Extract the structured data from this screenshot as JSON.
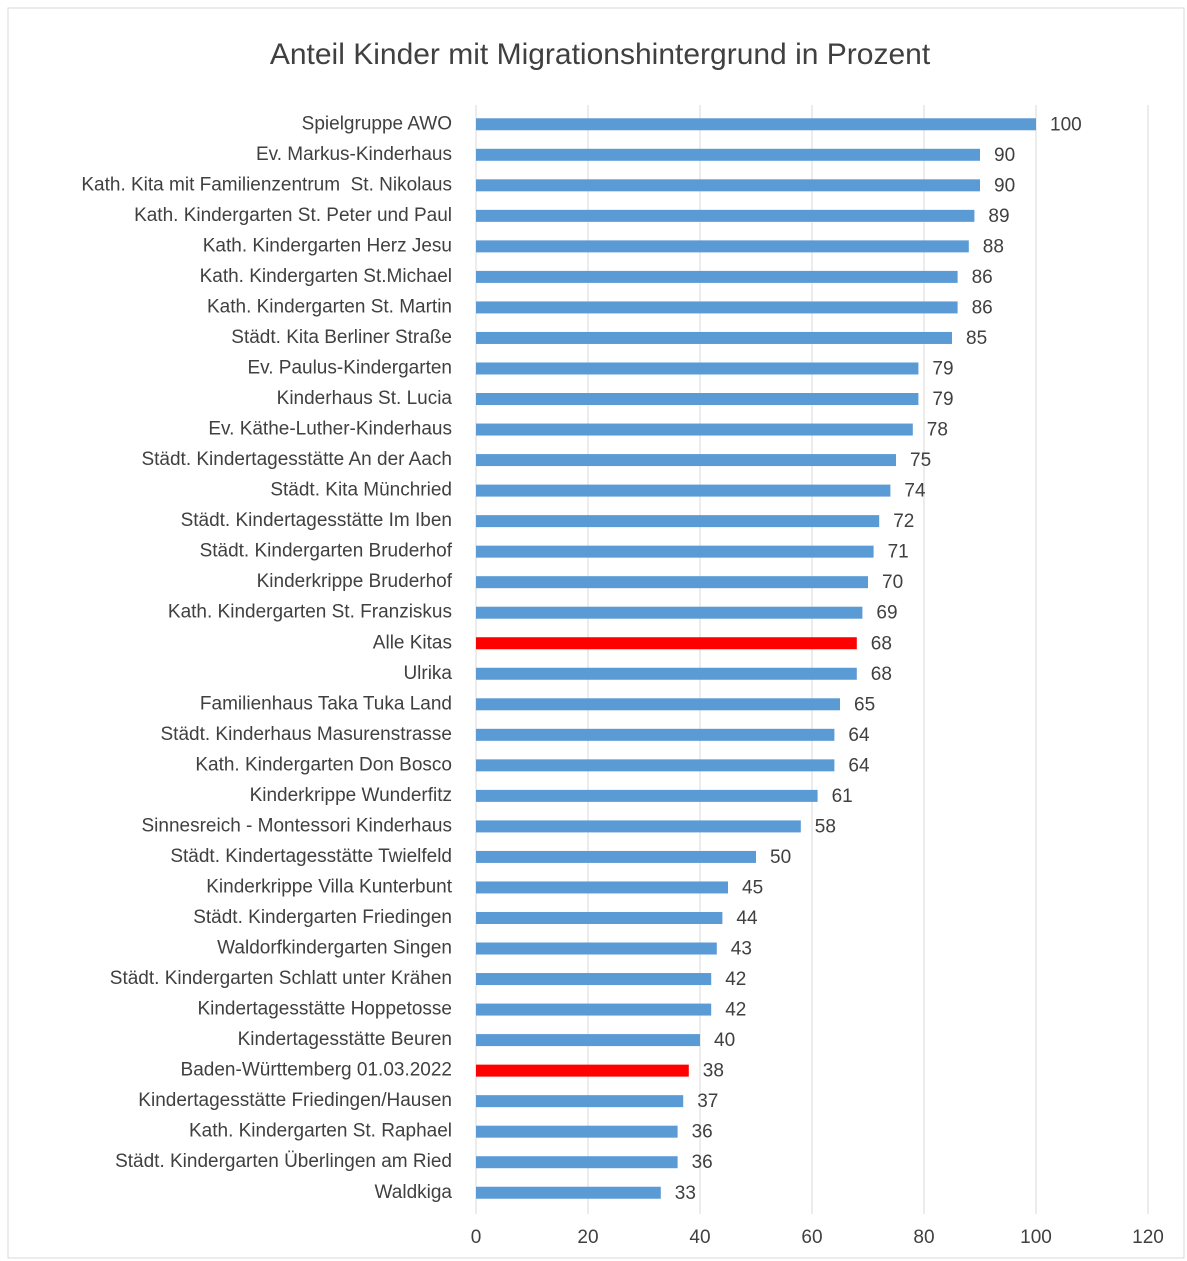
{
  "chart_data": {
    "type": "barh",
    "title": "Anteil Kinder mit Migrationshintergrund in Prozent",
    "categories": [
      "Spielgruppe AWO",
      "Ev. Markus-Kinderhaus",
      "Kath. Kita mit Familienzentrum  St. Nikolaus",
      "Kath. Kindergarten St. Peter und Paul",
      "Kath. Kindergarten Herz Jesu",
      "Kath. Kindergarten St.Michael",
      "Kath. Kindergarten St. Martin",
      "Städt. Kita Berliner Straße",
      "Ev. Paulus-Kindergarten",
      "Kinderhaus St. Lucia",
      "Ev. Käthe-Luther-Kinderhaus",
      "Städt. Kindertagesstätte An der Aach",
      "Städt. Kita Münchried",
      "Städt. Kindertagesstätte Im Iben",
      "Städt. Kindergarten Bruderhof",
      "Kinderkrippe Bruderhof",
      "Kath. Kindergarten St. Franziskus",
      "Alle Kitas",
      "Ulrika",
      "Familienhaus Taka Tuka Land",
      "Städt. Kinderhaus Masurenstrasse",
      "Kath. Kindergarten Don Bosco",
      "Kinderkrippe Wunderfitz",
      "Sinnesreich - Montessori Kinderhaus",
      "Städt. Kindertagesstätte Twielfeld",
      "Kinderkrippe Villa Kunterbunt",
      "Städt. Kindergarten Friedingen",
      "Waldorfkindergarten Singen",
      "Städt. Kindergarten Schlatt unter Krähen",
      "Kindertagesstätte Hoppetosse",
      "Kindertagesstätte Beuren",
      "Baden-Württemberg 01.03.2022",
      "Kindertagesstätte Friedingen/Hausen",
      "Kath. Kindergarten St. Raphael",
      "Städt. Kindergarten Überlingen am Ried",
      "Waldkiga"
    ],
    "values": [
      100,
      90,
      90,
      89,
      88,
      86,
      86,
      85,
      79,
      79,
      78,
      75,
      74,
      72,
      71,
      70,
      69,
      68,
      68,
      65,
      64,
      64,
      61,
      58,
      50,
      45,
      44,
      43,
      42,
      42,
      40,
      38,
      37,
      36,
      36,
      33
    ],
    "colors": [
      "#5b9bd5",
      "#5b9bd5",
      "#5b9bd5",
      "#5b9bd5",
      "#5b9bd5",
      "#5b9bd5",
      "#5b9bd5",
      "#5b9bd5",
      "#5b9bd5",
      "#5b9bd5",
      "#5b9bd5",
      "#5b9bd5",
      "#5b9bd5",
      "#5b9bd5",
      "#5b9bd5",
      "#5b9bd5",
      "#5b9bd5",
      "#ff0000",
      "#5b9bd5",
      "#5b9bd5",
      "#5b9bd5",
      "#5b9bd5",
      "#5b9bd5",
      "#5b9bd5",
      "#5b9bd5",
      "#5b9bd5",
      "#5b9bd5",
      "#5b9bd5",
      "#5b9bd5",
      "#5b9bd5",
      "#5b9bd5",
      "#ff0000",
      "#5b9bd5",
      "#5b9bd5",
      "#5b9bd5",
      "#5b9bd5"
    ],
    "xlim": [
      0,
      120
    ],
    "xticks": [
      0,
      20,
      40,
      60,
      80,
      100,
      120
    ],
    "grid": true
  }
}
